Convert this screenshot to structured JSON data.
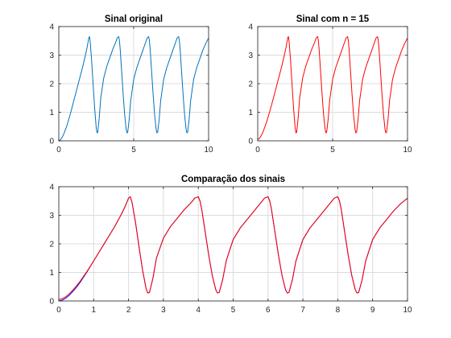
{
  "chart_data": [
    {
      "type": "line",
      "title": "Sinal original",
      "xlim": [
        0,
        10
      ],
      "ylim": [
        0,
        4
      ],
      "xticks": [
        0,
        5,
        10
      ],
      "yticks": [
        0,
        1,
        2,
        3,
        4
      ],
      "grid": true,
      "series": [
        {
          "color": "#0072BD",
          "x": [
            0,
            0.1,
            0.2,
            0.3,
            0.4,
            0.5,
            0.6,
            0.8,
            1.0,
            1.2,
            1.4,
            1.6,
            1.8,
            1.9,
            2.0,
            2.05,
            2.1,
            2.2,
            2.3,
            2.4,
            2.5,
            2.55,
            2.6,
            2.7,
            2.8,
            3.0,
            3.2,
            3.4,
            3.6,
            3.8,
            3.9,
            4.0,
            4.05,
            4.1,
            4.2,
            4.3,
            4.4,
            4.5,
            4.55,
            4.6,
            4.7,
            4.8,
            5.0,
            5.2,
            5.4,
            5.6,
            5.8,
            5.9,
            6.0,
            6.05,
            6.1,
            6.2,
            6.3,
            6.4,
            6.5,
            6.55,
            6.6,
            6.7,
            6.8,
            7.0,
            7.2,
            7.4,
            7.6,
            7.8,
            7.9,
            8.0,
            8.05,
            8.1,
            8.2,
            8.3,
            8.4,
            8.5,
            8.55,
            8.6,
            8.7,
            8.8,
            9.0,
            9.2,
            9.4,
            9.6,
            9.8,
            10.0
          ],
          "y": [
            0,
            0.03,
            0.1,
            0.2,
            0.33,
            0.47,
            0.63,
            1.0,
            1.4,
            1.8,
            2.2,
            2.6,
            3.05,
            3.3,
            3.6,
            3.65,
            3.45,
            2.75,
            1.9,
            1.1,
            0.45,
            0.28,
            0.3,
            0.8,
            1.5,
            2.2,
            2.6,
            2.9,
            3.2,
            3.45,
            3.6,
            3.65,
            3.5,
            3.2,
            2.4,
            1.6,
            0.9,
            0.4,
            0.28,
            0.3,
            0.75,
            1.4,
            2.15,
            2.55,
            2.85,
            3.15,
            3.45,
            3.6,
            3.65,
            3.5,
            3.2,
            2.4,
            1.6,
            0.9,
            0.4,
            0.28,
            0.3,
            0.75,
            1.4,
            2.15,
            2.55,
            2.85,
            3.15,
            3.45,
            3.6,
            3.65,
            3.5,
            3.2,
            2.4,
            1.6,
            0.9,
            0.4,
            0.28,
            0.3,
            0.75,
            1.4,
            2.15,
            2.55,
            2.85,
            3.15,
            3.4,
            3.6
          ]
        }
      ]
    },
    {
      "type": "line",
      "title": "Sinal com n = 15",
      "xlim": [
        0,
        10
      ],
      "ylim": [
        0,
        4
      ],
      "xticks": [
        0,
        5,
        10
      ],
      "yticks": [
        0,
        1,
        2,
        3,
        4
      ],
      "grid": true,
      "series": [
        {
          "color": "#FF0000",
          "x": [
            0,
            0.1,
            0.2,
            0.3,
            0.4,
            0.5,
            0.6,
            0.8,
            1.0,
            1.2,
            1.4,
            1.6,
            1.8,
            1.9,
            2.0,
            2.05,
            2.1,
            2.2,
            2.3,
            2.4,
            2.5,
            2.55,
            2.6,
            2.7,
            2.8,
            3.0,
            3.2,
            3.4,
            3.6,
            3.8,
            3.9,
            4.0,
            4.05,
            4.1,
            4.2,
            4.3,
            4.4,
            4.5,
            4.55,
            4.6,
            4.7,
            4.8,
            5.0,
            5.2,
            5.4,
            5.6,
            5.8,
            5.9,
            6.0,
            6.05,
            6.1,
            6.2,
            6.3,
            6.4,
            6.5,
            6.55,
            6.6,
            6.7,
            6.8,
            7.0,
            7.2,
            7.4,
            7.6,
            7.8,
            7.9,
            8.0,
            8.05,
            8.1,
            8.2,
            8.3,
            8.4,
            8.5,
            8.55,
            8.6,
            8.7,
            8.8,
            9.0,
            9.2,
            9.4,
            9.6,
            9.8,
            10.0
          ],
          "y": [
            0.05,
            0.08,
            0.15,
            0.25,
            0.38,
            0.52,
            0.67,
            1.02,
            1.4,
            1.8,
            2.2,
            2.6,
            3.05,
            3.3,
            3.6,
            3.65,
            3.45,
            2.75,
            1.9,
            1.1,
            0.45,
            0.28,
            0.3,
            0.8,
            1.5,
            2.2,
            2.6,
            2.9,
            3.2,
            3.45,
            3.6,
            3.65,
            3.5,
            3.2,
            2.4,
            1.6,
            0.9,
            0.4,
            0.28,
            0.3,
            0.75,
            1.4,
            2.15,
            2.55,
            2.85,
            3.15,
            3.45,
            3.6,
            3.65,
            3.5,
            3.2,
            2.4,
            1.6,
            0.9,
            0.4,
            0.28,
            0.3,
            0.75,
            1.4,
            2.15,
            2.55,
            2.85,
            3.15,
            3.45,
            3.6,
            3.65,
            3.5,
            3.2,
            2.4,
            1.6,
            0.9,
            0.4,
            0.28,
            0.3,
            0.75,
            1.4,
            2.15,
            2.55,
            2.85,
            3.15,
            3.4,
            3.6
          ]
        }
      ]
    },
    {
      "type": "line",
      "title": "Comparação dos sinais",
      "xlim": [
        0,
        10
      ],
      "ylim": [
        0,
        4
      ],
      "xticks": [
        0,
        1,
        2,
        3,
        4,
        5,
        6,
        7,
        8,
        9,
        10
      ],
      "yticks": [
        0,
        1,
        2,
        3,
        4
      ],
      "grid": true,
      "series": [
        {
          "color": "#0000FF",
          "x": [
            0,
            0.1,
            0.2,
            0.3,
            0.4,
            0.5,
            0.6,
            0.8,
            1.0,
            1.2,
            1.4,
            1.6,
            1.8,
            1.9,
            2.0,
            2.05,
            2.1,
            2.2,
            2.3,
            2.4,
            2.5,
            2.55,
            2.6,
            2.7,
            2.8,
            3.0,
            3.2,
            3.4,
            3.6,
            3.8,
            3.9,
            4.0,
            4.05,
            4.1,
            4.2,
            4.3,
            4.4,
            4.5,
            4.55,
            4.6,
            4.7,
            4.8,
            5.0,
            5.2,
            5.4,
            5.6,
            5.8,
            5.9,
            6.0,
            6.05,
            6.1,
            6.2,
            6.3,
            6.4,
            6.5,
            6.55,
            6.6,
            6.7,
            6.8,
            7.0,
            7.2,
            7.4,
            7.6,
            7.8,
            7.9,
            8.0,
            8.05,
            8.1,
            8.2,
            8.3,
            8.4,
            8.5,
            8.55,
            8.6,
            8.7,
            8.8,
            9.0,
            9.2,
            9.4,
            9.6,
            9.8,
            10.0
          ],
          "y": [
            0,
            0.03,
            0.1,
            0.2,
            0.33,
            0.47,
            0.63,
            1.0,
            1.4,
            1.8,
            2.2,
            2.6,
            3.05,
            3.3,
            3.6,
            3.65,
            3.45,
            2.75,
            1.9,
            1.1,
            0.45,
            0.28,
            0.3,
            0.8,
            1.5,
            2.2,
            2.6,
            2.9,
            3.2,
            3.45,
            3.6,
            3.65,
            3.5,
            3.2,
            2.4,
            1.6,
            0.9,
            0.4,
            0.28,
            0.3,
            0.75,
            1.4,
            2.15,
            2.55,
            2.85,
            3.15,
            3.45,
            3.6,
            3.65,
            3.5,
            3.2,
            2.4,
            1.6,
            0.9,
            0.4,
            0.28,
            0.3,
            0.75,
            1.4,
            2.15,
            2.55,
            2.85,
            3.15,
            3.45,
            3.6,
            3.65,
            3.5,
            3.2,
            2.4,
            1.6,
            0.9,
            0.4,
            0.28,
            0.3,
            0.75,
            1.4,
            2.15,
            2.55,
            2.85,
            3.15,
            3.4,
            3.6
          ]
        },
        {
          "color": "#FF0000",
          "x": [
            0,
            0.1,
            0.2,
            0.3,
            0.4,
            0.5,
            0.6,
            0.8,
            1.0,
            1.2,
            1.4,
            1.6,
            1.8,
            1.9,
            2.0,
            2.05,
            2.1,
            2.2,
            2.3,
            2.4,
            2.5,
            2.55,
            2.6,
            2.7,
            2.8,
            3.0,
            3.2,
            3.4,
            3.6,
            3.8,
            3.9,
            4.0,
            4.05,
            4.1,
            4.2,
            4.3,
            4.4,
            4.5,
            4.55,
            4.6,
            4.7,
            4.8,
            5.0,
            5.2,
            5.4,
            5.6,
            5.8,
            5.9,
            6.0,
            6.05,
            6.1,
            6.2,
            6.3,
            6.4,
            6.5,
            6.55,
            6.6,
            6.7,
            6.8,
            7.0,
            7.2,
            7.4,
            7.6,
            7.8,
            7.9,
            8.0,
            8.05,
            8.1,
            8.2,
            8.3,
            8.4,
            8.5,
            8.55,
            8.6,
            8.7,
            8.8,
            9.0,
            9.2,
            9.4,
            9.6,
            9.8,
            10.0
          ],
          "y": [
            0.05,
            0.08,
            0.15,
            0.25,
            0.38,
            0.52,
            0.67,
            1.02,
            1.4,
            1.8,
            2.2,
            2.6,
            3.05,
            3.3,
            3.6,
            3.65,
            3.45,
            2.75,
            1.9,
            1.1,
            0.45,
            0.28,
            0.3,
            0.8,
            1.5,
            2.2,
            2.6,
            2.9,
            3.2,
            3.45,
            3.6,
            3.65,
            3.5,
            3.2,
            2.4,
            1.6,
            0.9,
            0.4,
            0.28,
            0.3,
            0.75,
            1.4,
            2.15,
            2.55,
            2.85,
            3.15,
            3.45,
            3.6,
            3.65,
            3.5,
            3.2,
            2.4,
            1.6,
            0.9,
            0.4,
            0.28,
            0.3,
            0.75,
            1.4,
            2.15,
            2.55,
            2.85,
            3.15,
            3.45,
            3.6,
            3.65,
            3.5,
            3.2,
            2.4,
            1.6,
            0.9,
            0.4,
            0.28,
            0.3,
            0.75,
            1.4,
            2.15,
            2.55,
            2.85,
            3.15,
            3.4,
            3.6
          ]
        }
      ]
    }
  ]
}
